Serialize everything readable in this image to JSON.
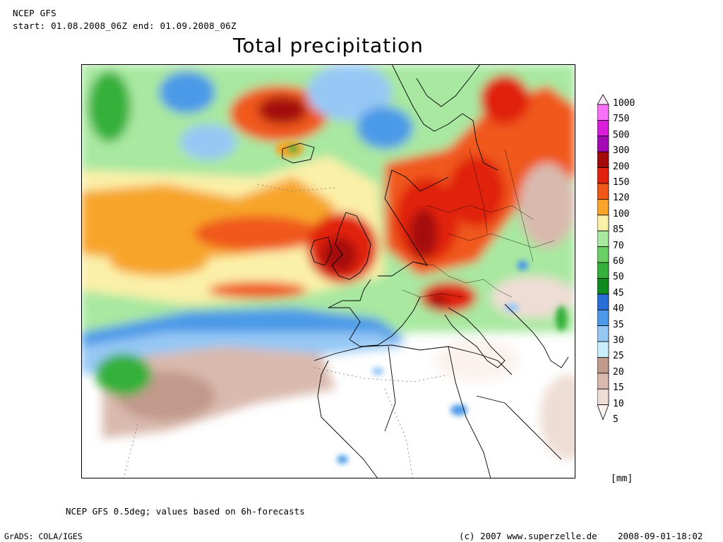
{
  "header": {
    "model": "NCEP GFS",
    "period": "start: 01.08.2008_06Z end: 01.09.2008_06Z",
    "title": "Total precipitation"
  },
  "legend": {
    "unit": "[mm]",
    "levels": [
      {
        "label": "1000",
        "color": "#fce6fc"
      },
      {
        "label": "750",
        "color": "#f870f5"
      },
      {
        "label": "500",
        "color": "#d81ed8"
      },
      {
        "label": "300",
        "color": "#a40bb4"
      },
      {
        "label": "200",
        "color": "#a50a0a"
      },
      {
        "label": "150",
        "color": "#e0220e"
      },
      {
        "label": "120",
        "color": "#f0581a"
      },
      {
        "label": "100",
        "color": "#f7a52a"
      },
      {
        "label": "85",
        "color": "#fbf0a8"
      },
      {
        "label": "70",
        "color": "#a8e8a0"
      },
      {
        "label": "60",
        "color": "#6ad064"
      },
      {
        "label": "50",
        "color": "#36b03a"
      },
      {
        "label": "45",
        "color": "#108a1e"
      },
      {
        "label": "40",
        "color": "#2a6fd8"
      },
      {
        "label": "35",
        "color": "#4c9ae8"
      },
      {
        "label": "30",
        "color": "#96c8f5"
      },
      {
        "label": "25",
        "color": "#c8f0fa"
      },
      {
        "label": "20",
        "color": "#c29a8c"
      },
      {
        "label": "15",
        "color": "#d9b9ad"
      },
      {
        "label": "10",
        "color": "#eeddd4"
      },
      {
        "label": "5",
        "color": "#fbf2ee"
      }
    ]
  },
  "footer": {
    "note": "NCEP GFS 0.5deg; values based on 6h-forecasts",
    "software": "GrADS: COLA/IGES",
    "copyright": "(c) 2007 www.superzelle.de",
    "timestamp": "2008-09-01-18:02"
  }
}
